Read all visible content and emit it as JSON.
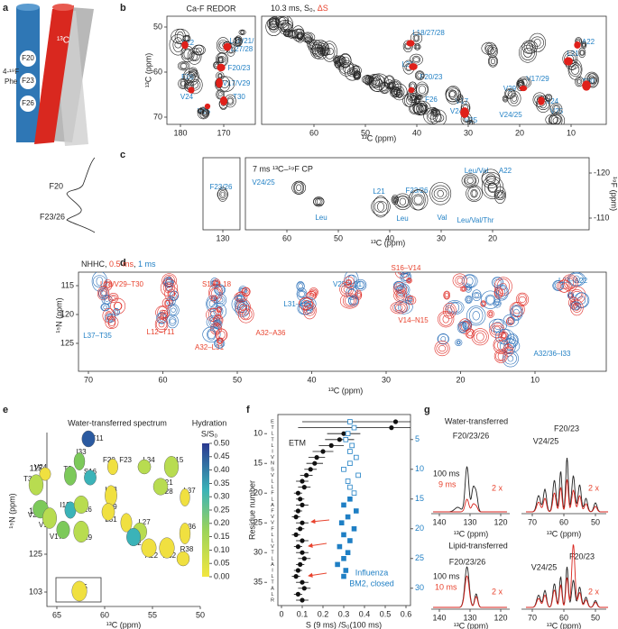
{
  "panel_labels": [
    "a",
    "b",
    "c",
    "d",
    "e",
    "f",
    "g"
  ],
  "a": {
    "phe": [
      "4-¹⁹F",
      "Phe"
    ],
    "residues": [
      "F20",
      "F23",
      "F26"
    ],
    "carbon": "¹³C"
  },
  "b": {
    "title_left": "Ca-F REDOR",
    "title_right": "10.3 ms, S₀, ",
    "title_delta": "ΔS",
    "y_label": "¹³C (ppm)",
    "x_label": "¹³C (ppm)",
    "yticks": [
      50,
      60,
      70
    ],
    "xticks_left": [
      180,
      170
    ],
    "xticks_right": [
      60,
      50,
      40,
      30,
      20,
      10
    ],
    "peaks": [
      "A22",
      "L18/21/",
      "L27/28",
      "F20/23",
      "F26",
      "V17/V29",
      "V24",
      "T30",
      "V25",
      "L18/27/28",
      "L21",
      "F20/23",
      "F26",
      "V17",
      "V24",
      "V25",
      "V29",
      "V17/29",
      "V24/25",
      "V24",
      "V25",
      "T30",
      "A22",
      "L21"
    ]
  },
  "c": {
    "title": "7 ms ¹³C–¹⁹F CP",
    "projection": [
      "F20",
      "F23/26"
    ],
    "x_label": "¹³C (ppm)",
    "y_label": "¹⁹F (ppm)",
    "xticks_left": [
      130
    ],
    "xticks_right": [
      60,
      50,
      40,
      30,
      20
    ],
    "yticks": [
      -120,
      -110
    ],
    "peaks": [
      "F23/26",
      "V24/25",
      "Leu",
      "L21",
      "F23/26",
      "Leu",
      "Val",
      "Leu/Val",
      "A22",
      "Leu/Val/Thr"
    ]
  },
  "d": {
    "legend": [
      "NHHC, ",
      "0.5 ms",
      ", ",
      "1 ms"
    ],
    "x_label": "¹³C (ppm)",
    "y_label": "¹⁵N (ppm)",
    "xticks": [
      70,
      60,
      50,
      40,
      30,
      20,
      10
    ],
    "yticks": [
      115,
      120,
      125
    ],
    "peaks": [
      "L28/V29–T30",
      "S15–L18",
      "L12–T11",
      "L37–T35",
      "A32–L31",
      "A32–A36",
      "L31–L37",
      "V25–L21",
      "S16–V14",
      "V14–N15",
      "L21–A22",
      "A32/36–I33"
    ]
  },
  "e": {
    "title": "Water-transferred spectrum",
    "x_label": "¹³C (ppm)",
    "y_label": "¹⁵N (ppm)",
    "xticks": [
      65,
      60,
      55,
      50
    ],
    "yticks": [
      115,
      120,
      125
    ],
    "inset_ticks": [
      103
    ],
    "colorbar_title": [
      "Hydration",
      "S/S₀"
    ],
    "colorbar_lim": [
      0,
      0.5
    ],
    "colorbar_ticks": [
      {
        "value": 0.5,
        "label": "0.50"
      },
      {
        "value": 0.45,
        "label": "0.45"
      },
      {
        "value": 0.4,
        "label": "0.40"
      },
      {
        "value": 0.35,
        "label": "0.35"
      },
      {
        "value": 0.3,
        "label": "0.30"
      },
      {
        "value": 0.25,
        "label": "0.25"
      },
      {
        "value": 0.2,
        "label": "0.20"
      },
      {
        "value": 0.15,
        "label": "0.15"
      },
      {
        "value": 0.1,
        "label": "0.10"
      },
      {
        "value": 0.05,
        "label": "0.05"
      },
      {
        "value": 0,
        "label": "0.00"
      }
    ],
    "residues": [
      "T11",
      "I33",
      "S16",
      "T9",
      "F20, F23",
      "L34",
      "N15",
      "V24",
      "T30",
      "L18",
      "L21",
      "L28",
      "L37",
      "L19",
      "I13",
      "F26",
      "L31",
      "L27",
      "V25",
      "V14",
      "V17",
      "V29",
      "A36",
      "L12",
      "A22",
      "A32",
      "R38",
      "T35"
    ]
  },
  "chart_data": {
    "type": "scatter",
    "x_label": "S (9 ms) /S₀(100 ms)",
    "y_label": "Residue number",
    "xlim": [
      0,
      0.6
    ],
    "xticks": [
      0,
      0.1,
      0.2,
      0.3,
      0.4,
      0.5,
      0.6
    ],
    "ylim": [
      8,
      38
    ],
    "yticks": [
      10,
      15,
      20,
      25,
      30,
      35
    ],
    "y2ticks": [
      5,
      10,
      15,
      20,
      25,
      30
    ],
    "sequence": [
      "E",
      "T",
      "L",
      "T",
      "L",
      "I",
      "V",
      "N",
      "S",
      "V",
      "L",
      "L",
      "F",
      "L",
      "A",
      "F",
      "V",
      "V",
      "F",
      "L",
      "L",
      "V",
      "T",
      "L",
      "A",
      "I",
      "L",
      "T",
      "A",
      "L",
      "R"
    ],
    "annotation": "ETM",
    "annotation2": [
      "Influenza",
      "BM2, closed"
    ],
    "series": [
      {
        "name": "ETM",
        "color": "#111111",
        "marker": "circle",
        "x": [
          8,
          9,
          10,
          11,
          12,
          13,
          14,
          15,
          16,
          17,
          18,
          19,
          20,
          21,
          22,
          23,
          24,
          25,
          26,
          27,
          28,
          29,
          30,
          31,
          32,
          33,
          34,
          35,
          36,
          37,
          38
        ],
        "values": [
          0.55,
          0.53,
          0.3,
          0.28,
          0.24,
          0.2,
          0.17,
          0.16,
          0.14,
          0.12,
          0.1,
          0.11,
          0.08,
          0.09,
          0.1,
          0.08,
          0.07,
          0.1,
          0.09,
          0.07,
          0.1,
          0.08,
          0.1,
          0.11,
          0.09,
          0.08,
          0.07,
          0.1,
          0.11,
          0.08,
          0.1
        ],
        "errors": [
          0.45,
          0.45,
          0.08,
          0.07,
          0.06,
          0.05,
          0.04,
          0.04,
          0.03,
          0.03,
          0.03,
          0.03,
          0.02,
          0.02,
          0.03,
          0.02,
          0.02,
          0.03,
          0.02,
          0.02,
          0.03,
          0.02,
          0.03,
          0.03,
          0.02,
          0.02,
          0.02,
          0.03,
          0.03,
          0.02,
          0.03
        ]
      },
      {
        "color": "#1f7fc4",
        "marker": "open-square",
        "axis": "y2",
        "x": [
          2,
          3,
          4,
          5,
          6,
          7,
          8,
          9,
          10,
          11,
          12,
          13,
          14
        ],
        "values": [
          0.33,
          0.35,
          0.32,
          0.31,
          0.34,
          0.33,
          0.36,
          0.33,
          0.3,
          0.37,
          0.32,
          0.33,
          0.35
        ]
      },
      {
        "color": "#1f7fc4",
        "marker": "square",
        "axis": "y2",
        "x": [
          15,
          16,
          17,
          18,
          19,
          20,
          21,
          22,
          23,
          24,
          25,
          26,
          27,
          28
        ],
        "values": [
          0.33,
          0.3,
          0.36,
          0.32,
          0.29,
          0.35,
          0.3,
          0.33,
          0.28,
          0.32,
          0.3,
          0.27,
          0.31,
          0.3
        ]
      }
    ]
  },
  "g": {
    "x_label": "¹³C (ppm)",
    "xticks_left": [
      140,
      130,
      120
    ],
    "xticks_right": [
      70,
      60,
      50
    ],
    "top": {
      "title": "Water-transferred",
      "mix": [
        "100 ms",
        "9 ms"
      ],
      "scale": "2 x",
      "peaks": [
        "F20/23/26",
        "V24/25",
        "F20/23"
      ]
    },
    "bottom": {
      "title": "Lipid-transferred",
      "mix": [
        "100 ms",
        "10 ms"
      ],
      "scale": "2 x",
      "peaks": [
        "F20/23/26",
        "V24/25",
        "F20/23"
      ]
    }
  }
}
